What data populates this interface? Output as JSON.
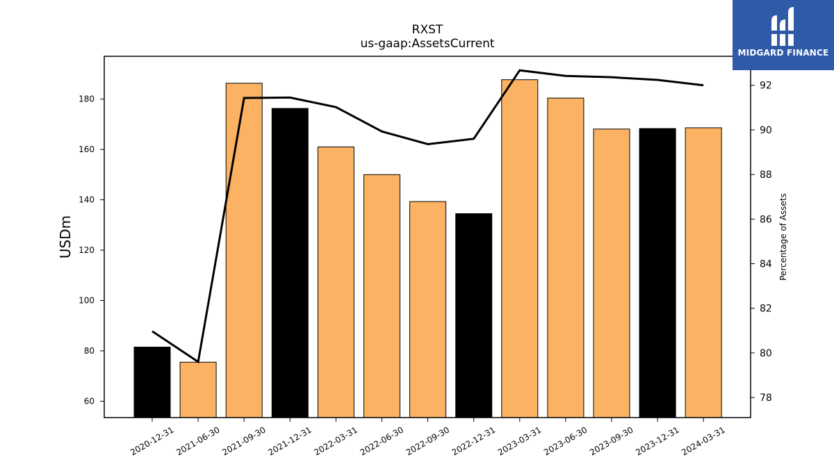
{
  "chart_data": {
    "type": "bar",
    "title": "RXST",
    "subtitle": "us-gaap:AssetsCurrent",
    "ylabel": "USDm",
    "y2label": "Percentage of Assets",
    "categories": [
      "2020-12-31",
      "2021-06-30",
      "2021-09-30",
      "2021-12-31",
      "2022-03-31",
      "2022-06-30",
      "2022-09-30",
      "2022-12-31",
      "2023-03-31",
      "2023-06-30",
      "2023-09-30",
      "2023-12-31",
      "2024-03-31"
    ],
    "series": [
      {
        "values": [
          81.5,
          75.5,
          186.3,
          176.3,
          161.0,
          150.0,
          139.3,
          134.5,
          187.7,
          180.4,
          168.1,
          168.3,
          168.6
        ],
        "colors": [
          "#000000",
          "#fbb263",
          "#fbb263",
          "#000000",
          "#fbb263",
          "#fbb263",
          "#fbb263",
          "#000000",
          "#fbb263",
          "#fbb263",
          "#fbb263",
          "#000000",
          "#fbb263"
        ]
      },
      {
        "axis": "right",
        "line_color": "#000000",
        "values": [
          80.97,
          79.6,
          91.43,
          91.45,
          91.02,
          89.93,
          89.36,
          89.6,
          92.67,
          92.42,
          92.36,
          92.24,
          92.0
        ]
      }
    ],
    "yticks": [
      60,
      80,
      100,
      120,
      140,
      160,
      180
    ],
    "ylim": [
      53.5,
      197
    ],
    "y2ticks": [
      78,
      80,
      82,
      84,
      86,
      88,
      90,
      92
    ],
    "y2lim": [
      77.1,
      93.3
    ],
    "grid": false
  },
  "logo": {
    "text": "MIDGARD FINANCE",
    "background": "#2e5aa8"
  }
}
